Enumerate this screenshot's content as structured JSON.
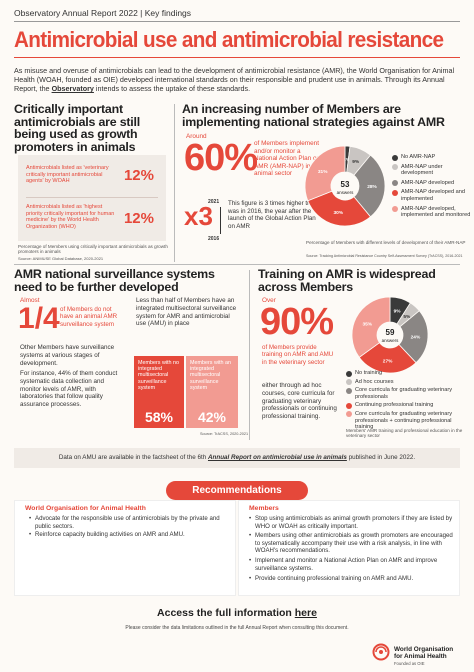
{
  "header": {
    "topbar": "Observatory Annual Report 2022 | Key findings",
    "title": "Antimicrobial use and antimicrobial resistance",
    "intro_1": "As misuse and overuse of antimicrobials can lead to the development of antimicrobial resistance (AMR), the World Organisation for Animal Health (WOAH, founded as OIE) developed international standards on their responsible and prudent use in animals. Through its Annual Report, the ",
    "intro_link": "Observatory",
    "intro_2": " intends to assess the uptake of these standards."
  },
  "section_1": {
    "heading": "Critically important antimicrobials are still being used as growth promoters in animals",
    "rows": [
      {
        "label": "Antimicrobials listed as 'veterinary critically important antimicrobial agents' by WOAH",
        "value": "12%"
      },
      {
        "label": "Antimicrobials listed as 'highest priority critically important for human medicine' by the World Health Organization (WHO)",
        "value": "12%"
      }
    ],
    "note": "Percentage of Members using critically important antimicrobials as growth promoters in animals",
    "source": "Source: ANIMUSE Global Database, 2020-2021"
  },
  "section_2": {
    "heading": "An increasing number of Members are implementing national strategies against AMR",
    "around": "Around",
    "big_pct": "60%",
    "big_text": "of Members implement and/or monitor a National Action Plan on AMR (AMR-NAP) in the animal sector",
    "x3": "x3",
    "year_top": "2021",
    "year_bottom": "2016",
    "x3_text": "This figure is 3 times higher than it was in 2016, the year after the launch of the Global Action Plan on AMR",
    "pie_center_num": "53",
    "pie_center_label": "answers",
    "legend_caption": "Percentage of Members with different levels of development of their AMR-NAP",
    "source": "Source: Tracking Antimicrobial Resistance Country Self-Assessment Survey (TrACSS), 2016-2021"
  },
  "section_3": {
    "heading": "AMR national surveillance systems need to be further developed",
    "almost": "Almost",
    "fraction_num": "1",
    "fraction_den": "4",
    "fraction_text": "of Members do not have an animal AMR surveillance system",
    "para1": "Other Members have surveillance systems at various stages of development.",
    "para2": "For instance, 44% of them conduct systematic data collection and monitor levels of AMR, with laboratories that follow quality assurance processes.",
    "less_than_half": "Less than half of Members have an integrated multisectoral surveillance system for AMR and antimicrobial use (AMU) in place",
    "box1_label": "Members with no integrated multisectoral surveillance system",
    "box1_pct": "58%",
    "box2_label": "Members with an integrated multisectoral surveillance system",
    "box2_pct": "42%",
    "source": "Source: TrACSS, 2020-2021"
  },
  "section_4": {
    "heading": "Training on AMR is widespread across Members",
    "over": "Over",
    "big_pct": "90%",
    "big_text": "of Members provide training on AMR and AMU in the veterinary sector",
    "body": "either through ad hoc courses, core curricula for graduating veterinary professionals or continuing professional training.",
    "pie_center_num": "59",
    "pie_center_label": "answers",
    "caption": "Members' AMR training and professional education in the veterinary sector"
  },
  "amu_note": {
    "pre": "Data on AMU are available in the factsheet of the 6th ",
    "link": "Annual Report on antimicrobial use in animals",
    "post": " published in June 2022."
  },
  "recommendations": {
    "pill": "Recommendations",
    "left_title": "World Organisation for Animal Health",
    "left_items": [
      "Advocate for the responsible use of antimicrobials by the private and public sectors.",
      "Reinforce capacity building activities on AMR and AMU."
    ],
    "right_title": "Members",
    "right_items": [
      "Stop using antimicrobials as animal growth promoters if they are listed by WHO or WOAH as critically important.",
      "Members using other antimicrobials as growth promoters are encouraged to systematically accompany their use with a risk analysis, in line with WOAH's recommendations.",
      "Implement and monitor a National Action Plan on AMR and improve surveillance systems.",
      "Provide continuing professional training on AMR and AMU."
    ]
  },
  "footer": {
    "access_pre": "Access the full information ",
    "access_link": "here",
    "note": "Please consider the data limitations outlined in the full Annual Report when consulting this document.",
    "org_line1": "World Organisation",
    "org_line2": "for Animal Health",
    "org_sub": "Founded as OIE"
  },
  "colors": {
    "accent": "#e5483a",
    "dark_red": "#b3302a",
    "light_red": "#f0a09a",
    "grey": "#7a7a7a",
    "light_grey": "#cfcfcf",
    "background": "#fdfaf6"
  },
  "chart_data": [
    {
      "type": "pie",
      "categories": [
        "No AMR-NAP",
        "AMR-NAP under development",
        "AMR-NAP developed",
        "AMR-NAP developed and implemented",
        "AMR-NAP developed, implemented and monitored"
      ],
      "values": [
        2,
        9,
        28,
        30,
        31
      ],
      "value_labels": [
        "2%",
        "9%",
        "28%",
        "30%",
        "31%"
      ],
      "colors": [
        "#3a3a3a",
        "#c9c5c2",
        "#8a8684",
        "#e5483a",
        "#f29b92"
      ],
      "legend": "right"
    },
    {
      "type": "pie",
      "categories": [
        "No training",
        "Ad hoc courses",
        "Core curricula for graduating veterinary professionals",
        "Continuing professional training",
        "Core curricula for graduating veterinary professionals + continuing professional training"
      ],
      "values": [
        9,
        5,
        24,
        27,
        35
      ],
      "value_labels": [
        "9%",
        "5%",
        "24%",
        "27%",
        "35%"
      ],
      "colors": [
        "#3a3a3a",
        "#c9c5c2",
        "#8a8684",
        "#e5483a",
        "#f29b92"
      ],
      "legend": "right"
    }
  ]
}
